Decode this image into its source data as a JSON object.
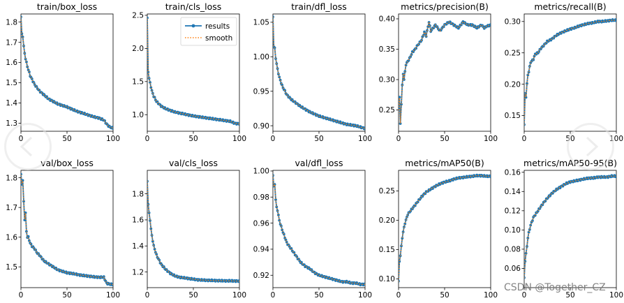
{
  "colors": {
    "results": "#1f77b4",
    "smooth": "#ff7f0e",
    "axis": "#000000"
  },
  "legend": {
    "results_label": "results",
    "smooth_label": "smooth"
  },
  "watermark": "CSDN @Together_CZ",
  "chart_data": [
    {
      "type": "line",
      "title": "train/box_loss",
      "xlim": [
        0,
        100
      ],
      "ylim": [
        1.26,
        1.84
      ],
      "xticks": [
        0,
        50,
        100
      ],
      "yticks": [
        1.3,
        1.4,
        1.5,
        1.6,
        1.7,
        1.8
      ],
      "tick_decimals": 1,
      "anchors": [
        [
          0,
          1.825
        ],
        [
          1,
          1.74
        ],
        [
          2,
          1.73
        ],
        [
          3,
          1.68
        ],
        [
          4,
          1.645
        ],
        [
          5,
          1.62
        ],
        [
          7,
          1.58
        ],
        [
          10,
          1.535
        ],
        [
          15,
          1.49
        ],
        [
          20,
          1.46
        ],
        [
          30,
          1.42
        ],
        [
          40,
          1.395
        ],
        [
          50,
          1.38
        ],
        [
          60,
          1.36
        ],
        [
          70,
          1.345
        ],
        [
          80,
          1.33
        ],
        [
          85,
          1.325
        ],
        [
          90,
          1.315
        ],
        [
          94,
          1.29
        ],
        [
          97,
          1.28
        ],
        [
          100,
          1.275
        ]
      ]
    },
    {
      "type": "line",
      "title": "train/cls_loss",
      "xlim": [
        0,
        100
      ],
      "ylim": [
        0.75,
        2.52
      ],
      "xticks": [
        0,
        50,
        100
      ],
      "yticks": [
        1.0,
        1.5,
        2.0,
        2.5
      ],
      "tick_decimals": 1,
      "legend_position": "upper right",
      "anchors": [
        [
          0,
          2.45
        ],
        [
          1,
          1.65
        ],
        [
          2,
          1.55
        ],
        [
          3,
          1.48
        ],
        [
          5,
          1.36
        ],
        [
          7,
          1.28
        ],
        [
          10,
          1.2
        ],
        [
          15,
          1.13
        ],
        [
          20,
          1.09
        ],
        [
          30,
          1.04
        ],
        [
          40,
          1.01
        ],
        [
          50,
          0.98
        ],
        [
          60,
          0.96
        ],
        [
          70,
          0.94
        ],
        [
          80,
          0.92
        ],
        [
          90,
          0.9
        ],
        [
          95,
          0.87
        ],
        [
          100,
          0.86
        ]
      ]
    },
    {
      "type": "line",
      "title": "train/dfl_loss",
      "xlim": [
        0,
        100
      ],
      "ylim": [
        0.892,
        1.062
      ],
      "xticks": [
        0,
        50,
        100
      ],
      "yticks": [
        0.9,
        0.95,
        1.0,
        1.05
      ],
      "tick_decimals": 2,
      "anchors": [
        [
          0,
          1.058
        ],
        [
          1,
          1.015
        ],
        [
          2,
          1.012
        ],
        [
          3,
          0.998
        ],
        [
          4,
          0.99
        ],
        [
          5,
          0.982
        ],
        [
          7,
          0.97
        ],
        [
          10,
          0.958
        ],
        [
          15,
          0.945
        ],
        [
          20,
          0.938
        ],
        [
          30,
          0.928
        ],
        [
          40,
          0.92
        ],
        [
          50,
          0.914
        ],
        [
          60,
          0.91
        ],
        [
          70,
          0.906
        ],
        [
          80,
          0.902
        ],
        [
          90,
          0.9
        ],
        [
          95,
          0.898
        ],
        [
          100,
          0.896
        ]
      ]
    },
    {
      "type": "line",
      "title": "metrics/precision(B)",
      "xlim": [
        0,
        100
      ],
      "ylim": [
        0.215,
        0.408
      ],
      "xticks": [
        0,
        50,
        100
      ],
      "yticks": [
        0.25,
        0.3,
        0.35,
        0.4
      ],
      "tick_decimals": 2,
      "anchors": [
        [
          0,
          0.255
        ],
        [
          1,
          0.27
        ],
        [
          2,
          0.228
        ],
        [
          3,
          0.26
        ],
        [
          4,
          0.29
        ],
        [
          5,
          0.31
        ],
        [
          6,
          0.3
        ],
        [
          8,
          0.325
        ],
        [
          10,
          0.33
        ],
        [
          12,
          0.335
        ],
        [
          15,
          0.345
        ],
        [
          18,
          0.35
        ],
        [
          20,
          0.355
        ],
        [
          25,
          0.365
        ],
        [
          28,
          0.378
        ],
        [
          30,
          0.372
        ],
        [
          33,
          0.395
        ],
        [
          35,
          0.38
        ],
        [
          40,
          0.39
        ],
        [
          45,
          0.38
        ],
        [
          50,
          0.39
        ],
        [
          55,
          0.395
        ],
        [
          60,
          0.39
        ],
        [
          65,
          0.385
        ],
        [
          70,
          0.395
        ],
        [
          75,
          0.39
        ],
        [
          80,
          0.39
        ],
        [
          85,
          0.385
        ],
        [
          90,
          0.39
        ],
        [
          93,
          0.385
        ],
        [
          96,
          0.388
        ],
        [
          100,
          0.39
        ]
      ]
    },
    {
      "type": "line",
      "title": "metrics/recall(B)",
      "xlim": [
        0,
        100
      ],
      "ylim": [
        0.125,
        0.312
      ],
      "xticks": [
        0,
        50,
        100
      ],
      "yticks": [
        0.15,
        0.2,
        0.25,
        0.3
      ],
      "tick_decimals": 2,
      "anchors": [
        [
          0,
          0.135
        ],
        [
          1,
          0.185
        ],
        [
          2,
          0.18
        ],
        [
          3,
          0.2
        ],
        [
          4,
          0.215
        ],
        [
          5,
          0.22
        ],
        [
          7,
          0.235
        ],
        [
          10,
          0.24
        ],
        [
          12,
          0.248
        ],
        [
          15,
          0.25
        ],
        [
          18,
          0.257
        ],
        [
          20,
          0.26
        ],
        [
          25,
          0.268
        ],
        [
          30,
          0.272
        ],
        [
          35,
          0.278
        ],
        [
          40,
          0.282
        ],
        [
          45,
          0.285
        ],
        [
          50,
          0.288
        ],
        [
          55,
          0.29
        ],
        [
          60,
          0.293
        ],
        [
          65,
          0.295
        ],
        [
          70,
          0.297
        ],
        [
          75,
          0.298
        ],
        [
          80,
          0.3
        ],
        [
          85,
          0.3
        ],
        [
          90,
          0.301
        ],
        [
          95,
          0.302
        ],
        [
          100,
          0.302
        ]
      ]
    },
    {
      "type": "line",
      "title": "val/box_loss",
      "xlim": [
        0,
        100
      ],
      "ylim": [
        1.43,
        1.825
      ],
      "xticks": [
        0,
        50,
        100
      ],
      "yticks": [
        1.5,
        1.6,
        1.7,
        1.8
      ],
      "tick_decimals": 1,
      "anchors": [
        [
          0,
          1.81
        ],
        [
          1,
          1.78
        ],
        [
          2,
          1.79
        ],
        [
          3,
          1.72
        ],
        [
          4,
          1.66
        ],
        [
          5,
          1.68
        ],
        [
          6,
          1.62
        ],
        [
          7,
          1.6
        ],
        [
          8,
          1.6
        ],
        [
          10,
          1.58
        ],
        [
          12,
          1.57
        ],
        [
          15,
          1.56
        ],
        [
          18,
          1.545
        ],
        [
          20,
          1.54
        ],
        [
          25,
          1.52
        ],
        [
          30,
          1.51
        ],
        [
          35,
          1.5
        ],
        [
          40,
          1.49
        ],
        [
          45,
          1.485
        ],
        [
          50,
          1.48
        ],
        [
          55,
          1.478
        ],
        [
          60,
          1.475
        ],
        [
          65,
          1.472
        ],
        [
          70,
          1.47
        ],
        [
          75,
          1.468
        ],
        [
          80,
          1.466
        ],
        [
          85,
          1.465
        ],
        [
          90,
          1.465
        ],
        [
          93,
          1.445
        ],
        [
          96,
          1.442
        ],
        [
          100,
          1.44
        ]
      ]
    },
    {
      "type": "line",
      "title": "val/cls_loss",
      "xlim": [
        0,
        100
      ],
      "ylim": [
        1.08,
        1.98
      ],
      "xticks": [
        0,
        50,
        100
      ],
      "yticks": [
        1.2,
        1.4,
        1.6,
        1.8
      ],
      "tick_decimals": 1,
      "anchors": [
        [
          0,
          1.9
        ],
        [
          1,
          1.72
        ],
        [
          2,
          1.65
        ],
        [
          3,
          1.6
        ],
        [
          4,
          1.53
        ],
        [
          5,
          1.48
        ],
        [
          7,
          1.4
        ],
        [
          10,
          1.33
        ],
        [
          15,
          1.26
        ],
        [
          20,
          1.22
        ],
        [
          25,
          1.19
        ],
        [
          30,
          1.17
        ],
        [
          35,
          1.16
        ],
        [
          40,
          1.155
        ],
        [
          45,
          1.15
        ],
        [
          50,
          1.145
        ],
        [
          55,
          1.14
        ],
        [
          60,
          1.138
        ],
        [
          70,
          1.135
        ],
        [
          80,
          1.133
        ],
        [
          90,
          1.132
        ],
        [
          100,
          1.13
        ]
      ]
    },
    {
      "type": "line",
      "title": "val/dfl_loss",
      "xlim": [
        0,
        100
      ],
      "ylim": [
        0.9105,
        1.0005
      ],
      "xticks": [
        0,
        50,
        100
      ],
      "yticks": [
        0.92,
        0.94,
        0.96,
        0.98,
        1.0
      ],
      "tick_decimals": 2,
      "anchors": [
        [
          0,
          0.997
        ],
        [
          1,
          0.988
        ],
        [
          2,
          0.99
        ],
        [
          3,
          0.978
        ],
        [
          4,
          0.972
        ],
        [
          5,
          0.97
        ],
        [
          7,
          0.962
        ],
        [
          10,
          0.955
        ],
        [
          15,
          0.945
        ],
        [
          20,
          0.94
        ],
        [
          25,
          0.935
        ],
        [
          30,
          0.93
        ],
        [
          35,
          0.927
        ],
        [
          40,
          0.925
        ],
        [
          45,
          0.922
        ],
        [
          50,
          0.92
        ],
        [
          55,
          0.919
        ],
        [
          60,
          0.918
        ],
        [
          65,
          0.917
        ],
        [
          70,
          0.916
        ],
        [
          75,
          0.915
        ],
        [
          80,
          0.915
        ],
        [
          85,
          0.914
        ],
        [
          90,
          0.914
        ],
        [
          95,
          0.913
        ],
        [
          100,
          0.913
        ]
      ]
    },
    {
      "type": "line",
      "title": "metrics/mAP50(B)",
      "xlim": [
        0,
        100
      ],
      "ylim": [
        0.085,
        0.285
      ],
      "xticks": [
        0,
        50,
        100
      ],
      "yticks": [
        0.1,
        0.15,
        0.2,
        0.25
      ],
      "tick_decimals": 2,
      "anchors": [
        [
          0,
          0.095
        ],
        [
          1,
          0.13
        ],
        [
          2,
          0.14
        ],
        [
          3,
          0.155
        ],
        [
          4,
          0.17
        ],
        [
          5,
          0.18
        ],
        [
          7,
          0.195
        ],
        [
          10,
          0.21
        ],
        [
          15,
          0.22
        ],
        [
          20,
          0.23
        ],
        [
          25,
          0.24
        ],
        [
          30,
          0.248
        ],
        [
          35,
          0.253
        ],
        [
          40,
          0.258
        ],
        [
          45,
          0.262
        ],
        [
          50,
          0.265
        ],
        [
          55,
          0.267
        ],
        [
          60,
          0.27
        ],
        [
          65,
          0.272
        ],
        [
          70,
          0.273
        ],
        [
          75,
          0.274
        ],
        [
          80,
          0.275
        ],
        [
          85,
          0.276
        ],
        [
          90,
          0.276
        ],
        [
          95,
          0.275
        ],
        [
          100,
          0.275
        ]
      ]
    },
    {
      "type": "line",
      "title": "metrics/mAP50-95(B)",
      "xlim": [
        0,
        100
      ],
      "ylim": [
        0.04,
        0.162
      ],
      "xticks": [
        0,
        50,
        100
      ],
      "yticks": [
        0.06,
        0.08,
        0.1,
        0.12,
        0.14,
        0.16
      ],
      "tick_decimals": 2,
      "anchors": [
        [
          0,
          0.05
        ],
        [
          1,
          0.068
        ],
        [
          2,
          0.075
        ],
        [
          3,
          0.083
        ],
        [
          4,
          0.092
        ],
        [
          5,
          0.097
        ],
        [
          7,
          0.105
        ],
        [
          10,
          0.113
        ],
        [
          15,
          0.12
        ],
        [
          20,
          0.127
        ],
        [
          25,
          0.133
        ],
        [
          30,
          0.138
        ],
        [
          35,
          0.142
        ],
        [
          40,
          0.145
        ],
        [
          45,
          0.148
        ],
        [
          50,
          0.15
        ],
        [
          55,
          0.151
        ],
        [
          60,
          0.152
        ],
        [
          65,
          0.153
        ],
        [
          70,
          0.154
        ],
        [
          75,
          0.154
        ],
        [
          80,
          0.155
        ],
        [
          85,
          0.155
        ],
        [
          90,
          0.155
        ],
        [
          95,
          0.156
        ],
        [
          100,
          0.156
        ]
      ]
    }
  ]
}
